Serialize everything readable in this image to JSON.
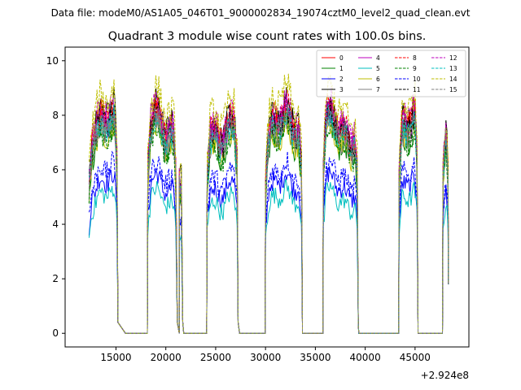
{
  "chart_data": {
    "type": "line",
    "suptitle": "Data file: modeM0/AS1A05_046T01_9000002834_19074cztM0_level2_quad_clean.evt",
    "title": "Quadrant 3 module wise count rates with 100.0s bins.",
    "xlabel": "",
    "ylabel": "",
    "offset_label": "+2.924e8",
    "xlim": [
      9900,
      50400
    ],
    "ylim": [
      -0.5,
      10.5
    ],
    "xticks": [
      15000,
      20000,
      25000,
      30000,
      35000,
      40000,
      45000
    ],
    "xtick_labels": [
      "15000",
      "20000",
      "25000",
      "30000",
      "35000",
      "40000",
      "45000"
    ],
    "yticks": [
      0,
      2,
      4,
      6,
      8,
      10
    ],
    "ytick_labels": [
      "0",
      "2",
      "4",
      "6",
      "8",
      "10"
    ],
    "legend_position": "top-right",
    "segments": [
      {
        "x0": 12300,
        "x1": 15100,
        "drop_start": 15100,
        "drop_end": 15950,
        "gap_end": 18200
      },
      {
        "x0": 18200,
        "x1": 21050,
        "drop_start": 21050,
        "drop_end": 21350,
        "gap_end": 21350
      },
      {
        "x0": 21350,
        "x1": 21600,
        "drop_start": 21600,
        "drop_end": 21800,
        "gap_end": 24150
      },
      {
        "x0": 24150,
        "x1": 27150,
        "drop_start": 27150,
        "drop_end": 27400,
        "gap_end": 30000
      },
      {
        "x0": 30000,
        "x1": 33600,
        "drop_start": 33600,
        "drop_end": 33700,
        "gap_end": 35800
      },
      {
        "x0": 35800,
        "x1": 39200,
        "drop_start": 39200,
        "drop_end": 39350,
        "gap_end": 43400
      },
      {
        "x0": 43400,
        "x1": 45200,
        "drop_start": 45200,
        "drop_end": 45300,
        "gap_end": 47800
      },
      {
        "x0": 47800,
        "x1": 48300,
        "drop_start": 48300,
        "drop_end": 48300,
        "gap_end": 48300
      }
    ],
    "series": [
      {
        "name": "0",
        "color": "#ff0000",
        "dash": "solid",
        "level": 7.6
      },
      {
        "name": "1",
        "color": "#008000",
        "dash": "solid",
        "level": 7.0
      },
      {
        "name": "2",
        "color": "#0000ff",
        "dash": "solid",
        "level": 5.4
      },
      {
        "name": "3",
        "color": "#000000",
        "dash": "solid",
        "level": 7.8
      },
      {
        "name": "4",
        "color": "#bf00bf",
        "dash": "solid",
        "level": 7.5
      },
      {
        "name": "5",
        "color": "#00bfbf",
        "dash": "solid",
        "level": 4.9
      },
      {
        "name": "6",
        "color": "#bfbf00",
        "dash": "solid",
        "level": 7.1
      },
      {
        "name": "7",
        "color": "#808080",
        "dash": "solid",
        "level": 7.2
      },
      {
        "name": "8",
        "color": "#ff0000",
        "dash": "dashed",
        "level": 7.7
      },
      {
        "name": "9",
        "color": "#008000",
        "dash": "dashed",
        "level": 7.0
      },
      {
        "name": "10",
        "color": "#0000ff",
        "dash": "dashed",
        "level": 5.8
      },
      {
        "name": "11",
        "color": "#000000",
        "dash": "dashed",
        "level": 7.5
      },
      {
        "name": "12",
        "color": "#bf00bf",
        "dash": "dashed",
        "level": 7.8
      },
      {
        "name": "13",
        "color": "#00bfbf",
        "dash": "dashed",
        "level": 7.3
      },
      {
        "name": "14",
        "color": "#bfbf00",
        "dash": "dashed",
        "level": 8.3
      },
      {
        "name": "15",
        "color": "#808080",
        "dash": "dashed",
        "level": 7.4
      }
    ]
  }
}
